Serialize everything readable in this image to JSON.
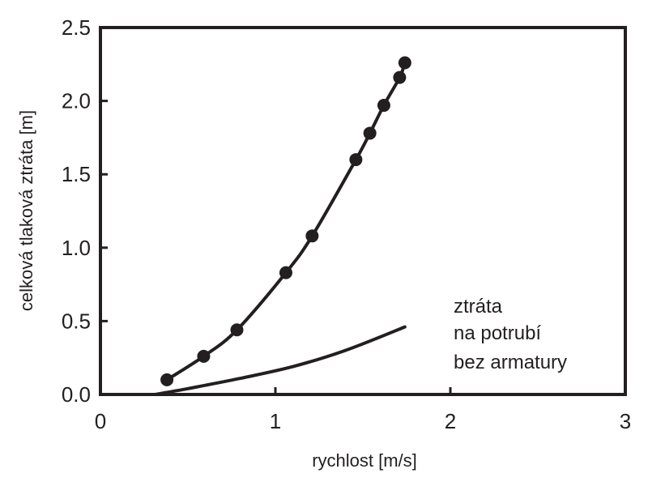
{
  "chart_data": {
    "type": "line",
    "xlabel": "rychlost [m/s]",
    "ylabel": "celková tlaková ztráta [m]",
    "xlim": [
      0,
      3
    ],
    "ylim": [
      0,
      2.5
    ],
    "xticks": [
      "0",
      "1",
      "2",
      "3"
    ],
    "yticks": [
      "0.0",
      "0.5",
      "1.0",
      "1.5",
      "2.0",
      "2.5"
    ],
    "grid": false,
    "series": [
      {
        "kind": "scatter",
        "points": [
          {
            "x": 0.38,
            "y": 0.1
          },
          {
            "x": 0.59,
            "y": 0.26
          },
          {
            "x": 0.78,
            "y": 0.44
          },
          {
            "x": 1.06,
            "y": 0.83
          },
          {
            "x": 1.21,
            "y": 1.08
          },
          {
            "x": 1.46,
            "y": 1.6
          },
          {
            "x": 1.54,
            "y": 1.78
          },
          {
            "x": 1.62,
            "y": 1.97
          },
          {
            "x": 1.71,
            "y": 2.16
          },
          {
            "x": 1.74,
            "y": 2.26
          }
        ]
      },
      {
        "kind": "fit-line",
        "points": [
          {
            "x": 0.38,
            "y": 0.1
          },
          {
            "x": 0.59,
            "y": 0.26
          },
          {
            "x": 0.78,
            "y": 0.44
          },
          {
            "x": 1.06,
            "y": 0.83
          },
          {
            "x": 1.21,
            "y": 1.08
          },
          {
            "x": 1.46,
            "y": 1.6
          },
          {
            "x": 1.54,
            "y": 1.78
          },
          {
            "x": 1.62,
            "y": 1.97
          },
          {
            "x": 1.71,
            "y": 2.16
          },
          {
            "x": 1.74,
            "y": 2.26
          }
        ]
      },
      {
        "kind": "line",
        "points": [
          {
            "x": 0.31,
            "y": 0.0
          },
          {
            "x": 0.5,
            "y": 0.04
          },
          {
            "x": 0.8,
            "y": 0.11
          },
          {
            "x": 1.1,
            "y": 0.19
          },
          {
            "x": 1.4,
            "y": 0.3
          },
          {
            "x": 1.74,
            "y": 0.46
          }
        ]
      }
    ],
    "annotations": [
      "ztráta",
      "na potrubí",
      "bez armatury"
    ],
    "colors": {
      "ink": "#231f20"
    }
  }
}
